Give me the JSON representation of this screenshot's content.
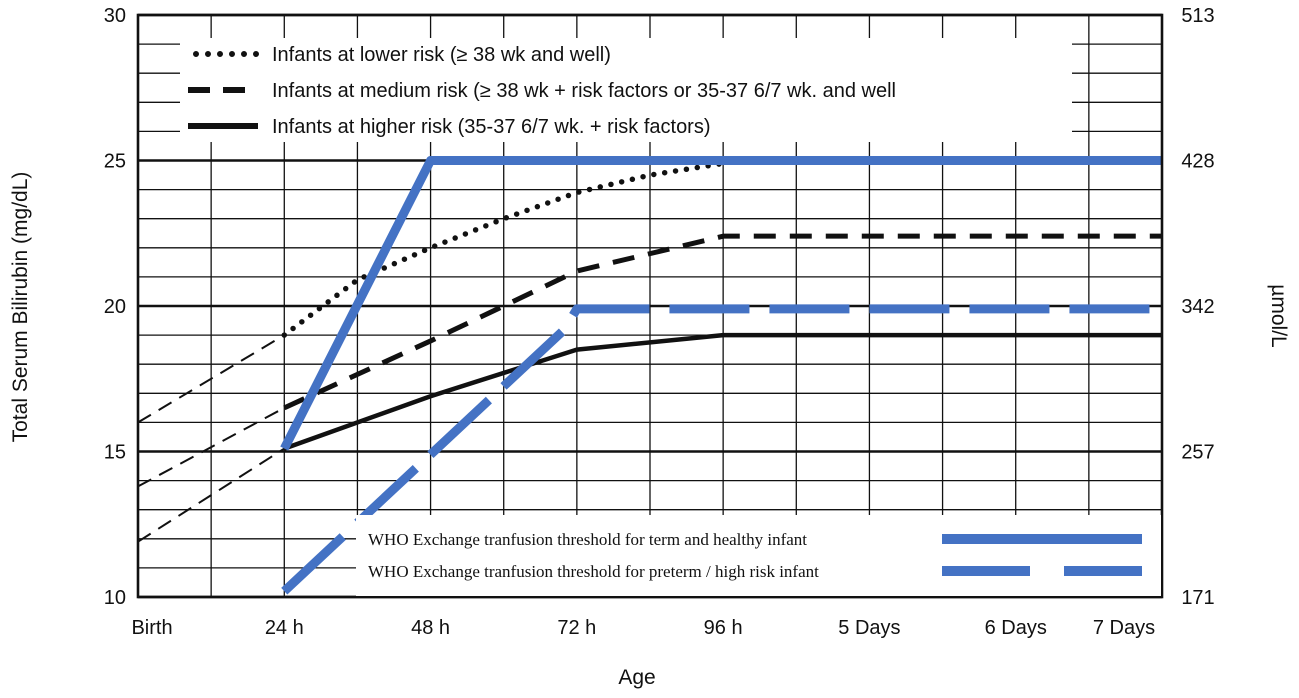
{
  "chart_data": {
    "type": "line",
    "xlabel": "Age",
    "ylabel": "Total Serum Bilirubin (mg/dL)",
    "y2label": "µmol/L",
    "categories": [
      "Birth",
      "24 h",
      "48 h",
      "72 h",
      "96 h",
      "5 Days",
      "6 Days",
      "7 Days"
    ],
    "x_unit": "hours",
    "xlim": [
      0,
      168
    ],
    "ylim": [
      10,
      30
    ],
    "y_ticks": [
      10,
      15,
      20,
      25,
      30
    ],
    "y2_ticks": [
      171,
      257,
      342,
      428,
      513
    ],
    "grid": true,
    "legend_top": [
      {
        "label": "Infants at lower risk (≥ 38 wk and well)",
        "style": "dotted"
      },
      {
        "label": "Infants at medium risk (≥ 38 wk + risk factors or 35-37 6/7 wk. and well",
        "style": "dashed"
      },
      {
        "label": "Infants at higher risk (35-37 6/7 wk. + risk factors)",
        "style": "solid"
      }
    ],
    "legend_bottom": [
      {
        "label": "WHO Exchange tranfusion threshold for term and healthy infant",
        "style": "solid-blue"
      },
      {
        "label": "WHO Exchange tranfusion threshold for preterm / high risk infant",
        "style": "dashed-blue"
      }
    ],
    "series": [
      {
        "name": "Infants at lower risk (≥ 38 wk and well)",
        "style": "dotted",
        "color": "#111111",
        "x": [
          24,
          36,
          48,
          60,
          72,
          84,
          96
        ],
        "y": [
          19,
          20.9,
          22,
          23,
          23.9,
          24.5,
          24.9
        ],
        "extrapolated": {
          "x": [
            0,
            24
          ],
          "y": [
            16,
            19
          ]
        }
      },
      {
        "name": "Infants at medium risk (≥ 38 wk + risk factors or 35-37 6/7 wk. and well",
        "style": "dashed",
        "color": "#111111",
        "x": [
          24,
          48,
          72,
          96,
          120,
          144,
          168
        ],
        "y": [
          16.5,
          18.8,
          21.2,
          22.4,
          22.4,
          22.4,
          22.4
        ],
        "extrapolated": {
          "x": [
            0,
            24
          ],
          "y": [
            13.8,
            16.5
          ]
        }
      },
      {
        "name": "Infants at higher risk (35-37 6/7 wk. + risk factors)",
        "style": "solid",
        "color": "#111111",
        "x": [
          24,
          48,
          72,
          96,
          120,
          144,
          168
        ],
        "y": [
          15.1,
          16.9,
          18.5,
          19,
          19,
          19,
          19
        ],
        "extrapolated": {
          "x": [
            0,
            24
          ],
          "y": [
            11.9,
            15.1
          ]
        }
      },
      {
        "name": "WHO Exchange tranfusion threshold for term and healthy infant",
        "style": "solid",
        "color": "#4472c4",
        "x": [
          24,
          48,
          168
        ],
        "y": [
          15.1,
          25,
          25
        ]
      },
      {
        "name": "WHO Exchange tranfusion threshold for preterm / high risk infant",
        "style": "dashed",
        "color": "#4472c4",
        "x": [
          24,
          70,
          72,
          168
        ],
        "y": [
          10.2,
          19.2,
          19.9,
          19.9
        ]
      }
    ]
  }
}
